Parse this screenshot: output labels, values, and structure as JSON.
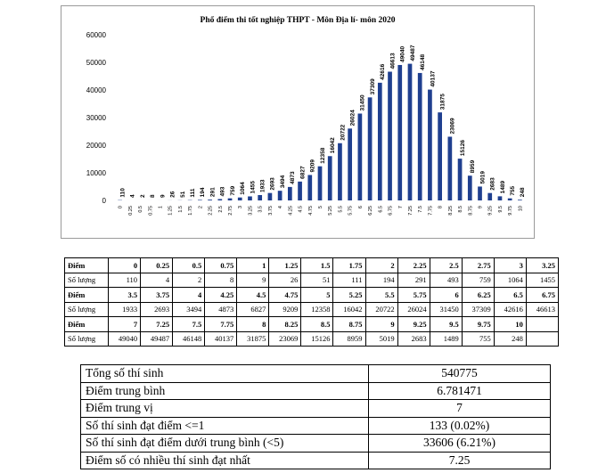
{
  "chart_data": {
    "type": "bar",
    "title": "Phổ điểm thi tốt nghiệp THPT - Môn Địa lí- môn 2020",
    "categories": [
      "0",
      "0.25",
      "0.5",
      "0.75",
      "1",
      "1.25",
      "1.5",
      "1.75",
      "2",
      "2.25",
      "2.5",
      "2.75",
      "3",
      "3.25",
      "3.5",
      "3.75",
      "4",
      "4.25",
      "4.5",
      "4.75",
      "5",
      "5.25",
      "5.5",
      "5.75",
      "6",
      "6.25",
      "6.5",
      "6.75",
      "7",
      "7.25",
      "7.5",
      "7.75",
      "8",
      "8.25",
      "8.5",
      "8.75",
      "9",
      "9.25",
      "9.5",
      "9.75",
      "10"
    ],
    "values": [
      110,
      4,
      2,
      8,
      9,
      26,
      51,
      111,
      194,
      291,
      493,
      759,
      1064,
      1455,
      1933,
      2693,
      3494,
      4873,
      6827,
      9209,
      12358,
      16042,
      20722,
      26024,
      31450,
      37309,
      42616,
      46613,
      49040,
      49487,
      46148,
      40137,
      31875,
      23069,
      15126,
      8959,
      5019,
      2683,
      1489,
      755,
      248
    ],
    "y_ticks": [
      "0",
      "10000",
      "20000",
      "30000",
      "40000",
      "50000",
      "60000"
    ],
    "ylim": [
      0,
      60000
    ],
    "bar_color": "#1f3f8f",
    "grid": false,
    "legend": false
  },
  "score_table": {
    "rows": [
      {
        "label": "Điểm",
        "kind": "score",
        "cells": [
          "0",
          "0.25",
          "0.5",
          "0.75",
          "1",
          "1.25",
          "1.5",
          "1.75",
          "2",
          "2.25",
          "2.5",
          "2.75",
          "3",
          "3.25"
        ]
      },
      {
        "label": "Số lượng",
        "kind": "count",
        "cells": [
          "110",
          "4",
          "2",
          "8",
          "9",
          "26",
          "51",
          "111",
          "194",
          "291",
          "493",
          "759",
          "1064",
          "1455"
        ]
      },
      {
        "label": "Điểm",
        "kind": "score",
        "cells": [
          "3.5",
          "3.75",
          "4",
          "4.25",
          "4.5",
          "4.75",
          "5",
          "5.25",
          "5.5",
          "5.75",
          "6",
          "6.25",
          "6.5",
          "6.75"
        ]
      },
      {
        "label": "Số lượng",
        "kind": "count",
        "cells": [
          "1933",
          "2693",
          "3494",
          "4873",
          "6827",
          "9209",
          "12358",
          "16042",
          "20722",
          "26024",
          "31450",
          "37309",
          "42616",
          "46613"
        ]
      },
      {
        "label": "Điểm",
        "kind": "score",
        "cells": [
          "7",
          "7.25",
          "7.5",
          "7.75",
          "8",
          "8.25",
          "8.5",
          "8.75",
          "9",
          "9.25",
          "9.5",
          "9.75",
          "10",
          ""
        ]
      },
      {
        "label": "Số lượng",
        "kind": "count",
        "cells": [
          "49040",
          "49487",
          "46148",
          "40137",
          "31875",
          "23069",
          "15126",
          "8959",
          "5019",
          "2683",
          "1489",
          "755",
          "248",
          ""
        ]
      }
    ]
  },
  "summary": [
    {
      "label": "Tổng số thí sinh",
      "value": "540775"
    },
    {
      "label": "Điểm trung bình",
      "value": "6.781471"
    },
    {
      "label": "Điểm trung vị",
      "value": "7"
    },
    {
      "label": "Số thí sinh đạt điểm <=1",
      "value": "133 (0.02%)"
    },
    {
      "label": "Số thí sinh đạt điểm dưới trung bình (<5)",
      "value": "33606 (6.21%)"
    },
    {
      "label": "Điểm số có nhiều thí sinh đạt nhất",
      "value": "7.25"
    }
  ]
}
